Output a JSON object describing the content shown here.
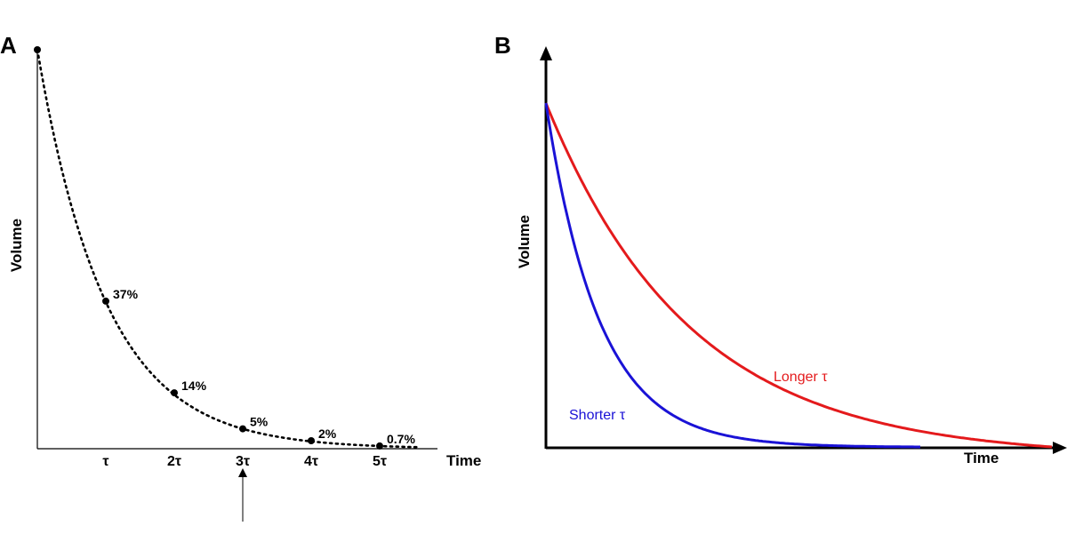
{
  "chart_data": [
    {
      "type": "line",
      "panel_label": "A",
      "xlabel": "Time",
      "ylabel": "Volume",
      "x_ticks": [
        "τ",
        "2τ",
        "3τ",
        "4τ",
        "5τ"
      ],
      "x_tick_values": [
        1,
        2,
        3,
        4,
        5
      ],
      "xlim": [
        0,
        5.5
      ],
      "ylim": [
        0,
        100
      ],
      "grid": false,
      "line_style": "dotted",
      "series": [
        {
          "x": [
            0,
            1,
            2,
            3,
            4,
            5
          ],
          "y": [
            100,
            37,
            14,
            5,
            2,
            0.7
          ]
        }
      ],
      "points": [
        {
          "x": 0,
          "y": 100,
          "label": ""
        },
        {
          "x": 1,
          "y": 37,
          "label": "37%"
        },
        {
          "x": 2,
          "y": 14,
          "label": "14%"
        },
        {
          "x": 3,
          "y": 5,
          "label": "5%"
        },
        {
          "x": 4,
          "y": 2,
          "label": "2%"
        },
        {
          "x": 5,
          "y": 0.7,
          "label": "0.7%"
        }
      ],
      "annotation": {
        "type": "arrow",
        "points_to_x": 3
      }
    },
    {
      "type": "line",
      "panel_label": "B",
      "xlabel": "Time",
      "ylabel": "Volume",
      "grid": false,
      "series": [
        {
          "name": "Longer τ",
          "color": "#e41a1c",
          "x": [
            0,
            1
          ],
          "y": [
            100,
            1
          ]
        },
        {
          "name": "Shorter τ",
          "color": "#1a12d6",
          "x": [
            0,
            0.73
          ],
          "y": [
            100,
            0
          ]
        }
      ]
    }
  ]
}
